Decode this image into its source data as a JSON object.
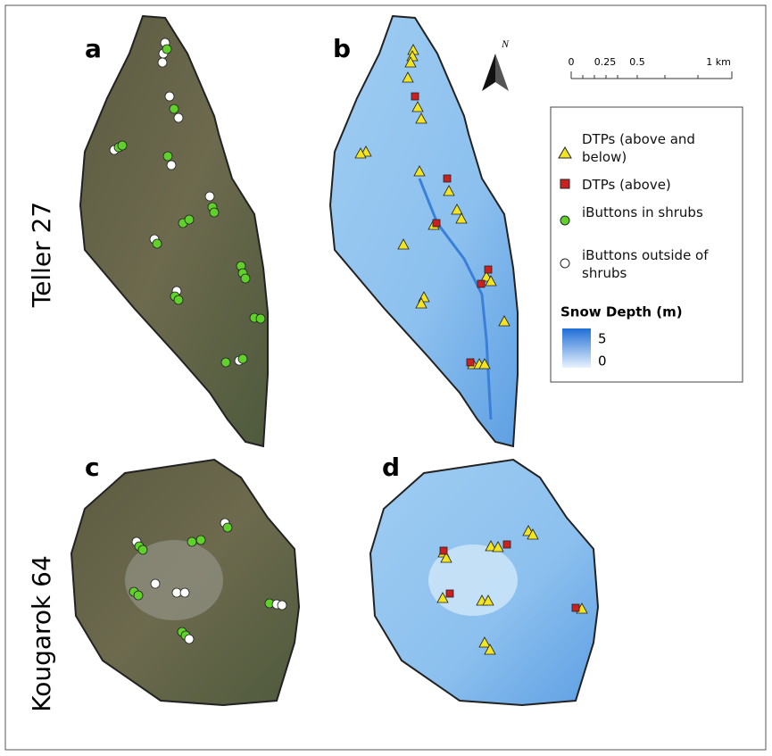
{
  "panels": [
    {
      "label": "a"
    },
    {
      "label": "b"
    },
    {
      "label": "c"
    },
    {
      "label": "d"
    }
  ],
  "sites": [
    "Teller 27",
    "Kougarok 64"
  ],
  "north": "N",
  "scale_bar": {
    "labels": [
      "0",
      "0.25",
      "0.5",
      "1 km"
    ]
  },
  "legend": {
    "items": [
      "DTPs (above and below)",
      "DTPs (above)",
      "iButtons in shrubs",
      "iButtons outside of shrubs"
    ],
    "colorbar_title": "Snow Depth (m)",
    "colorbar_labels": [
      "5",
      "0"
    ]
  }
}
